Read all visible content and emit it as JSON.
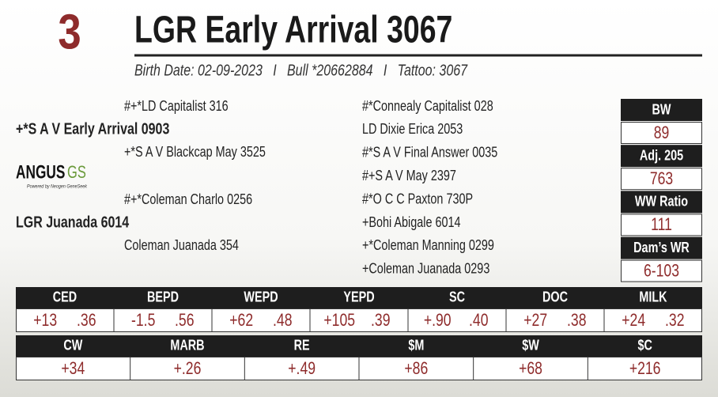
{
  "lot": "3",
  "name": "LGR Early Arrival 3067",
  "details": "Birth Date: 02-09-2023   I   Bull *20662884   I   Tattoo: 3067",
  "logo": {
    "brand": "ANGUS",
    "mark": "GS",
    "tagline": "Powered by Neogen GeneSeek"
  },
  "pedigree": {
    "sire": "+*S A V Early Arrival 0903",
    "sire_sire": "#+*LD Capitalist 316",
    "sire_dam": "+*S A V Blackcap May 3525",
    "dam": "LGR Juanada 6014",
    "dam_sire": "#+*Coleman Charlo 0256",
    "dam_dam": "Coleman Juanada 354",
    "third_generation": [
      "#*Connealy Capitalist 028",
      "LD Dixie Erica 2053",
      "#*S A V Final Answer 0035",
      "#+S A V May 2397",
      "#*O C C Paxton 730P",
      "+Bohi Abigale 6014",
      "+*Coleman Manning 0299",
      "+Coleman Juanada 0293"
    ]
  },
  "performance": [
    {
      "label": "BW",
      "value": "89"
    },
    {
      "label": "Adj. 205",
      "value": "763"
    },
    {
      "label": "WW Ratio",
      "value": "111"
    },
    {
      "label": "Dam’s WR",
      "value": "6-103"
    }
  ],
  "epd_rows": [
    [
      {
        "trait": "CED",
        "epd": "+13",
        "acc": ".36"
      },
      {
        "trait": "BEPD",
        "epd": "-1.5",
        "acc": ".56"
      },
      {
        "trait": "WEPD",
        "epd": "+62",
        "acc": ".48"
      },
      {
        "trait": "YEPD",
        "epd": "+105",
        "acc": ".39"
      },
      {
        "trait": "SC",
        "epd": "+.90",
        "acc": ".40"
      },
      {
        "trait": "DOC",
        "epd": "+27",
        "acc": ".38"
      },
      {
        "trait": "MILK",
        "epd": "+24",
        "acc": ".32"
      }
    ],
    [
      {
        "trait": "CW",
        "epd": "+34"
      },
      {
        "trait": "MARB",
        "epd": "+.26"
      },
      {
        "trait": "RE",
        "epd": "+.49"
      },
      {
        "trait": "$M",
        "epd": "+86"
      },
      {
        "trait": "$W",
        "epd": "+68"
      },
      {
        "trait": "$C",
        "epd": "+216"
      }
    ]
  ]
}
